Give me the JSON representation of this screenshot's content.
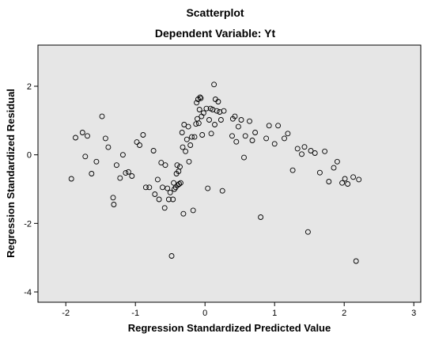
{
  "chart_data": {
    "type": "scatter",
    "title": "Scatterplot",
    "subtitle": "Dependent Variable: Yt",
    "xlabel": "Regression Standardized Predicted Value",
    "ylabel": "Regression Standardized Residual",
    "xlim": [
      -2.4,
      3.1
    ],
    "ylim": [
      -4.3,
      3.2
    ],
    "xticks": [
      -2,
      -1,
      0,
      1,
      2,
      3
    ],
    "yticks": [
      -4,
      -2,
      0,
      2
    ],
    "grid": false,
    "plot_background": "#e6e6e6",
    "marker_color": "#000000",
    "points": [
      {
        "x": -1.92,
        "y": -0.7
      },
      {
        "x": -1.86,
        "y": 0.5
      },
      {
        "x": -1.76,
        "y": 0.65
      },
      {
        "x": -1.72,
        "y": -0.05
      },
      {
        "x": -1.69,
        "y": 0.55
      },
      {
        "x": -1.63,
        "y": -0.55
      },
      {
        "x": -1.56,
        "y": -0.2
      },
      {
        "x": -1.48,
        "y": 1.12
      },
      {
        "x": -1.43,
        "y": 0.48
      },
      {
        "x": -1.39,
        "y": 0.22
      },
      {
        "x": -1.32,
        "y": -1.25
      },
      {
        "x": -1.31,
        "y": -1.45
      },
      {
        "x": -1.27,
        "y": -0.3
      },
      {
        "x": -1.22,
        "y": -0.68
      },
      {
        "x": -1.18,
        "y": 0.0
      },
      {
        "x": -1.14,
        "y": -0.53
      },
      {
        "x": -1.1,
        "y": -0.5
      },
      {
        "x": -1.05,
        "y": -0.62
      },
      {
        "x": -0.98,
        "y": 0.37
      },
      {
        "x": -0.94,
        "y": 0.28
      },
      {
        "x": -0.89,
        "y": 0.58
      },
      {
        "x": -0.85,
        "y": -0.95
      },
      {
        "x": -0.8,
        "y": -0.95
      },
      {
        "x": -0.74,
        "y": 0.12
      },
      {
        "x": -0.72,
        "y": -1.15
      },
      {
        "x": -0.68,
        "y": -0.72
      },
      {
        "x": -0.66,
        "y": -1.3
      },
      {
        "x": -0.63,
        "y": -0.23
      },
      {
        "x": -0.61,
        "y": -0.95
      },
      {
        "x": -0.58,
        "y": -1.55
      },
      {
        "x": -0.57,
        "y": -0.3
      },
      {
        "x": -0.54,
        "y": -0.98
      },
      {
        "x": -0.52,
        "y": -1.3
      },
      {
        "x": -0.5,
        "y": -1.1
      },
      {
        "x": -0.48,
        "y": -2.95
      },
      {
        "x": -0.46,
        "y": -1.3
      },
      {
        "x": -0.45,
        "y": -0.82
      },
      {
        "x": -0.44,
        "y": -1.0
      },
      {
        "x": -0.42,
        "y": -0.95
      },
      {
        "x": -0.41,
        "y": -0.55
      },
      {
        "x": -0.4,
        "y": -0.3
      },
      {
        "x": -0.39,
        "y": -0.88
      },
      {
        "x": -0.38,
        "y": -0.48
      },
      {
        "x": -0.37,
        "y": -0.85
      },
      {
        "x": -0.36,
        "y": -0.35
      },
      {
        "x": -0.35,
        "y": -0.82
      },
      {
        "x": -0.33,
        "y": 0.65
      },
      {
        "x": -0.32,
        "y": 0.22
      },
      {
        "x": -0.31,
        "y": -1.72
      },
      {
        "x": -0.3,
        "y": 0.88
      },
      {
        "x": -0.28,
        "y": 0.1
      },
      {
        "x": -0.26,
        "y": 0.45
      },
      {
        "x": -0.24,
        "y": 0.82
      },
      {
        "x": -0.23,
        "y": -0.2
      },
      {
        "x": -0.21,
        "y": 0.28
      },
      {
        "x": -0.19,
        "y": 0.52
      },
      {
        "x": -0.17,
        "y": -1.62
      },
      {
        "x": -0.15,
        "y": 0.52
      },
      {
        "x": -0.13,
        "y": 0.9
      },
      {
        "x": -0.12,
        "y": 1.52
      },
      {
        "x": -0.11,
        "y": 1.05
      },
      {
        "x": -0.1,
        "y": 1.62
      },
      {
        "x": -0.09,
        "y": 0.92
      },
      {
        "x": -0.08,
        "y": 1.32
      },
      {
        "x": -0.07,
        "y": 1.68
      },
      {
        "x": -0.06,
        "y": 1.65
      },
      {
        "x": -0.05,
        "y": 1.12
      },
      {
        "x": -0.04,
        "y": 0.58
      },
      {
        "x": -0.02,
        "y": 1.22
      },
      {
        "x": 0.02,
        "y": 1.35
      },
      {
        "x": 0.04,
        "y": -0.98
      },
      {
        "x": 0.06,
        "y": 1.02
      },
      {
        "x": 0.08,
        "y": 1.35
      },
      {
        "x": 0.09,
        "y": 0.62
      },
      {
        "x": 0.11,
        "y": 1.32
      },
      {
        "x": 0.13,
        "y": 2.05
      },
      {
        "x": 0.14,
        "y": 0.88
      },
      {
        "x": 0.15,
        "y": 1.62
      },
      {
        "x": 0.17,
        "y": 1.28
      },
      {
        "x": 0.19,
        "y": 1.55
      },
      {
        "x": 0.21,
        "y": 1.25
      },
      {
        "x": 0.23,
        "y": 1.02
      },
      {
        "x": 0.25,
        "y": -1.05
      },
      {
        "x": 0.27,
        "y": 1.28
      },
      {
        "x": 0.39,
        "y": 0.55
      },
      {
        "x": 0.4,
        "y": 1.05
      },
      {
        "x": 0.43,
        "y": 1.12
      },
      {
        "x": 0.45,
        "y": 0.38
      },
      {
        "x": 0.48,
        "y": 0.82
      },
      {
        "x": 0.52,
        "y": 1.02
      },
      {
        "x": 0.56,
        "y": -0.08
      },
      {
        "x": 0.58,
        "y": 0.55
      },
      {
        "x": 0.64,
        "y": 0.98
      },
      {
        "x": 0.68,
        "y": 0.42
      },
      {
        "x": 0.72,
        "y": 0.65
      },
      {
        "x": 0.8,
        "y": -1.82
      },
      {
        "x": 0.88,
        "y": 0.48
      },
      {
        "x": 0.92,
        "y": 0.85
      },
      {
        "x": 1.0,
        "y": 0.32
      },
      {
        "x": 1.05,
        "y": 0.85
      },
      {
        "x": 1.14,
        "y": 0.48
      },
      {
        "x": 1.19,
        "y": 0.62
      },
      {
        "x": 1.26,
        "y": -0.45
      },
      {
        "x": 1.33,
        "y": 0.18
      },
      {
        "x": 1.39,
        "y": 0.02
      },
      {
        "x": 1.43,
        "y": 0.23
      },
      {
        "x": 1.48,
        "y": -2.25
      },
      {
        "x": 1.52,
        "y": 0.12
      },
      {
        "x": 1.58,
        "y": 0.05
      },
      {
        "x": 1.65,
        "y": -0.52
      },
      {
        "x": 1.72,
        "y": 0.1
      },
      {
        "x": 1.78,
        "y": -0.78
      },
      {
        "x": 1.85,
        "y": -0.38
      },
      {
        "x": 1.9,
        "y": -0.2
      },
      {
        "x": 1.97,
        "y": -0.82
      },
      {
        "x": 2.01,
        "y": -0.7
      },
      {
        "x": 2.05,
        "y": -0.85
      },
      {
        "x": 2.13,
        "y": -0.65
      },
      {
        "x": 2.17,
        "y": -3.1
      },
      {
        "x": 2.21,
        "y": -0.72
      }
    ]
  }
}
